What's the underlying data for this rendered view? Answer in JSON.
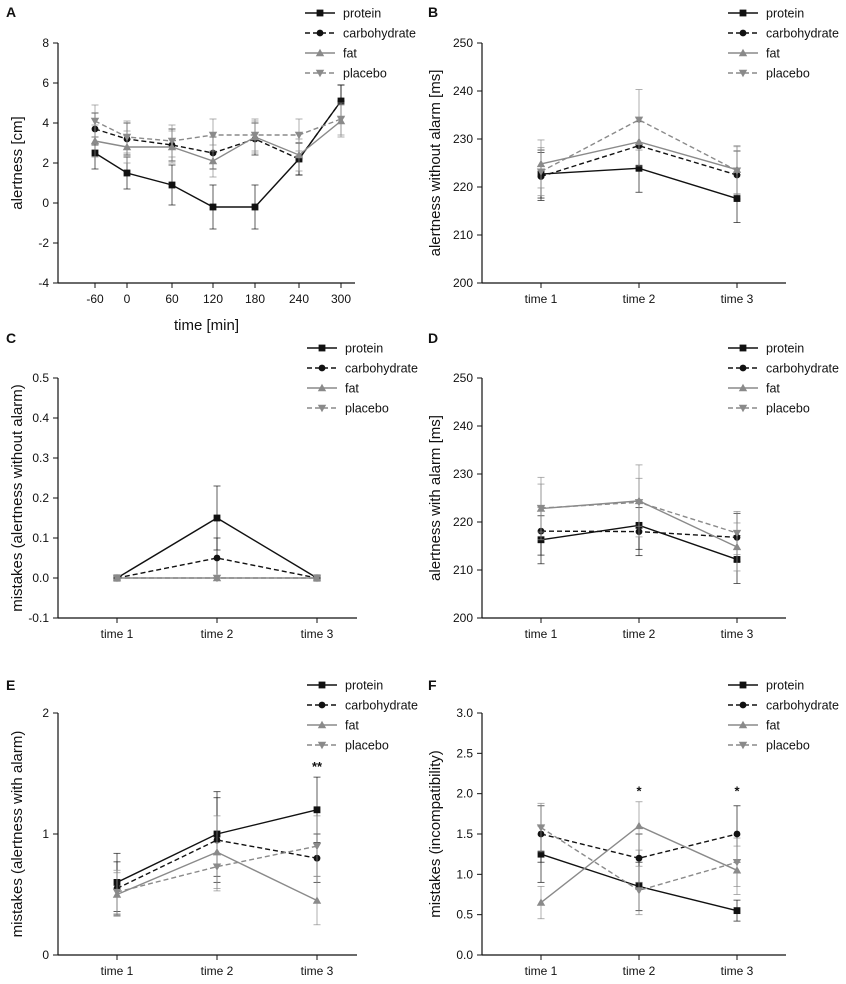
{
  "series_styles": [
    {
      "name": "protein",
      "color": "#111111",
      "dash": "",
      "marker": "square"
    },
    {
      "name": "carbohydrate",
      "color": "#111111",
      "dash": "5,3",
      "marker": "circle"
    },
    {
      "name": "fat",
      "color": "#8a8a8a",
      "dash": "",
      "marker": "triangle-up"
    },
    {
      "name": "placebo",
      "color": "#8a8a8a",
      "dash": "5,3",
      "marker": "triangle-down"
    }
  ],
  "chart_data": [
    {
      "panel": "A",
      "type": "line",
      "xlabel": "time [min]",
      "ylabel": "alertness [cm]",
      "categories": [
        "-60",
        "0",
        "60",
        "120",
        "180",
        "240",
        "300"
      ],
      "ylim": [
        -4,
        8
      ],
      "yticks": [
        -4,
        -2,
        0,
        2,
        4,
        6,
        8
      ],
      "yticklabels": [
        "-4",
        "-2",
        "0",
        "2",
        "4",
        "6",
        "8"
      ],
      "legend": "top-right",
      "series": [
        {
          "name": "protein",
          "values": [
            2.5,
            1.5,
            0.9,
            -0.2,
            -0.2,
            2.2,
            5.1
          ],
          "err": [
            0.8,
            0.8,
            1.0,
            1.1,
            1.1,
            0.8,
            0.8
          ]
        },
        {
          "name": "carbohydrate",
          "values": [
            3.7,
            3.2,
            2.9,
            2.5,
            3.2,
            2.2,
            5.1
          ],
          "err": [
            0.8,
            0.8,
            0.8,
            0.8,
            0.8,
            0.8,
            0.8
          ]
        },
        {
          "name": "fat",
          "values": [
            3.1,
            2.8,
            2.8,
            2.1,
            3.3,
            2.4,
            4.1
          ],
          "err": [
            0.8,
            0.8,
            0.8,
            0.8,
            0.8,
            0.8,
            0.8
          ]
        },
        {
          "name": "placebo",
          "values": [
            4.1,
            3.3,
            3.1,
            3.4,
            3.4,
            3.4,
            4.2
          ],
          "err": [
            0.8,
            0.8,
            0.8,
            0.8,
            0.8,
            0.8,
            0.8
          ]
        }
      ],
      "annotations": []
    },
    {
      "panel": "B",
      "type": "line",
      "xlabel": "",
      "ylabel": "alertness without alarm [ms]",
      "categories": [
        "time 1",
        "time 2",
        "time 3"
      ],
      "ylim": [
        200,
        250
      ],
      "yticks": [
        200,
        210,
        220,
        230,
        240,
        250
      ],
      "yticklabels": [
        "200",
        "210",
        "220",
        "230",
        "240",
        "250"
      ],
      "legend": "top-right",
      "series": [
        {
          "name": "protein",
          "values": [
            222.7,
            223.9,
            217.6
          ],
          "err": [
            5,
            5,
            5
          ]
        },
        {
          "name": "carbohydrate",
          "values": [
            222.2,
            228.6,
            222.5
          ],
          "err": [
            5,
            5,
            5
          ]
        },
        {
          "name": "fat",
          "values": [
            224.8,
            229.4,
            223.6
          ],
          "err": [
            5,
            5,
            5
          ]
        },
        {
          "name": "placebo",
          "values": [
            223.2,
            234.0,
            223.4
          ],
          "err": [
            5,
            6.3,
            5
          ]
        }
      ],
      "annotations": []
    },
    {
      "panel": "C",
      "type": "line",
      "xlabel": "",
      "ylabel": "mistakes (alertness without alarm)",
      "categories": [
        "time 1",
        "time 2",
        "time 3"
      ],
      "ylim": [
        -0.1,
        0.5
      ],
      "yticks": [
        -0.1,
        0.0,
        0.1,
        0.2,
        0.3,
        0.4,
        0.5
      ],
      "yticklabels": [
        "-0.1",
        "0.0",
        "0.1",
        "0.2",
        "0.3",
        "0.4",
        "0.5"
      ],
      "legend": "top-right",
      "series": [
        {
          "name": "protein",
          "values": [
            0,
            0.15,
            0
          ],
          "err": [
            0,
            0.08,
            0
          ]
        },
        {
          "name": "carbohydrate",
          "values": [
            0,
            0.05,
            0
          ],
          "err": [
            0,
            0.05,
            0
          ]
        },
        {
          "name": "fat",
          "values": [
            0,
            0,
            0
          ],
          "err": [
            0,
            0,
            0
          ]
        },
        {
          "name": "placebo",
          "values": [
            0,
            0,
            0
          ],
          "err": [
            0,
            0,
            0
          ]
        }
      ],
      "annotations": []
    },
    {
      "panel": "D",
      "type": "line",
      "xlabel": "",
      "ylabel": "alertness with alarm [ms]",
      "categories": [
        "time 1",
        "time 2",
        "time 3"
      ],
      "ylim": [
        200,
        250
      ],
      "yticks": [
        200,
        210,
        220,
        230,
        240,
        250
      ],
      "yticklabels": [
        "200",
        "210",
        "220",
        "230",
        "240",
        "250"
      ],
      "legend": "top-right",
      "series": [
        {
          "name": "protein",
          "values": [
            216.3,
            219.3,
            212.2
          ],
          "err": [
            5,
            5,
            5
          ]
        },
        {
          "name": "carbohydrate",
          "values": [
            218.1,
            218.0,
            216.8
          ],
          "err": [
            5,
            5,
            5
          ]
        },
        {
          "name": "fat",
          "values": [
            222.8,
            224.4,
            214.8
          ],
          "err": [
            6.5,
            7.5,
            5
          ]
        },
        {
          "name": "placebo",
          "values": [
            222.9,
            224.1,
            217.7
          ],
          "err": [
            5,
            5,
            4.5
          ]
        }
      ],
      "annotations": []
    },
    {
      "panel": "E",
      "type": "line",
      "xlabel": "",
      "ylabel": "mistakes (alertness with alarm)",
      "categories": [
        "time 1",
        "time 2",
        "time 3"
      ],
      "ylim": [
        0,
        2
      ],
      "yticks": [
        0,
        1,
        2
      ],
      "yticklabels": [
        "0",
        "1",
        "2"
      ],
      "legend": "top-right",
      "series": [
        {
          "name": "protein",
          "values": [
            0.6,
            1.0,
            1.2
          ],
          "err": [
            0.24,
            0.35,
            0.27
          ]
        },
        {
          "name": "carbohydrate",
          "values": [
            0.55,
            0.95,
            0.8
          ],
          "err": [
            0.22,
            0.35,
            0.2
          ]
        },
        {
          "name": "fat",
          "values": [
            0.5,
            0.85,
            0.45
          ],
          "err": [
            0.18,
            0.3,
            0.2
          ]
        },
        {
          "name": "placebo",
          "values": [
            0.52,
            0.73,
            0.9
          ],
          "err": [
            0.18,
            0.2,
            0.25
          ]
        }
      ],
      "annotations": [
        {
          "category_index": 2,
          "y": 1.52,
          "text": "**"
        }
      ]
    },
    {
      "panel": "F",
      "type": "line",
      "xlabel": "",
      "ylabel": "mistakes (incompatibility)",
      "categories": [
        "time 1",
        "time 2",
        "time 3"
      ],
      "ylim": [
        0,
        3
      ],
      "yticks": [
        0,
        0.5,
        1,
        1.5,
        2,
        2.5,
        3
      ],
      "yticklabels": [
        "0.0",
        "0.5",
        "1.0",
        "1.5",
        "2.0",
        "2.5",
        "3.0"
      ],
      "legend": "top-right",
      "series": [
        {
          "name": "protein",
          "values": [
            1.25,
            0.85,
            0.55
          ],
          "err": [
            0.35,
            0.3,
            0.13
          ]
        },
        {
          "name": "carbohydrate",
          "values": [
            1.5,
            1.2,
            1.5
          ],
          "err": [
            0.35,
            0.3,
            0.35
          ]
        },
        {
          "name": "fat",
          "values": [
            0.65,
            1.6,
            1.05
          ],
          "err": [
            0.2,
            0.3,
            0.3
          ]
        },
        {
          "name": "placebo",
          "values": [
            1.58,
            0.8,
            1.15
          ],
          "err": [
            0.3,
            0.3,
            0.3
          ]
        }
      ],
      "annotations": [
        {
          "category_index": 1,
          "y": 1.98,
          "text": "*"
        },
        {
          "category_index": 2,
          "y": 1.98,
          "text": "*"
        }
      ]
    }
  ]
}
